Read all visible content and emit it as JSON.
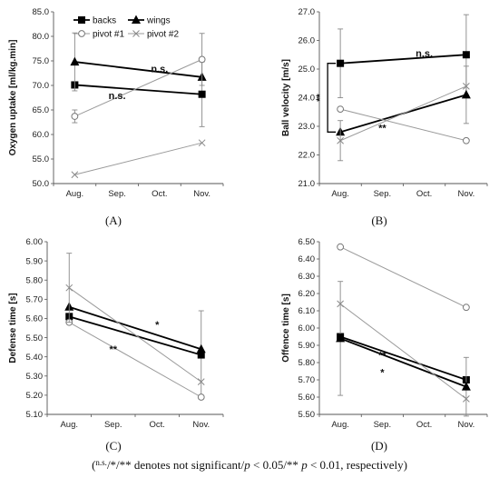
{
  "caption": {
    "sup": "n.s.",
    "rest": "/*/** denotes not significant/",
    "p1": "p",
    "mid": " < 0.05/** ",
    "p2": "p",
    "end": " < 0.01, respectively)",
    "open": "("
  },
  "colors": {
    "backs": "#000000",
    "wings": "#000000",
    "pivot1": "#8c8c8c",
    "pivot2": "#8c8c8c",
    "errbar": "#8c8c8c"
  },
  "chart_data": [
    {
      "id": "A",
      "type": "line",
      "letter": "(A)",
      "categories": [
        "Aug.",
        "Sep.",
        "Oct.",
        "Nov."
      ],
      "ylabel": "Oxygen uptake [ml/kg.min]",
      "ylim": [
        50,
        85
      ],
      "yticks": [
        "50.0",
        "55.0",
        "60.0",
        "65.0",
        "70.0",
        "75.0",
        "80.0",
        "85.0"
      ],
      "legend": [
        {
          "key": "backs",
          "label": "backs",
          "marker": "square"
        },
        {
          "key": "wings",
          "label": "wings",
          "marker": "triangle"
        },
        {
          "key": "pivot1",
          "label": "pivot #1",
          "marker": "circle"
        },
        {
          "key": "pivot2",
          "label": "pivot #2",
          "marker": "x"
        }
      ],
      "series": [
        {
          "key": "backs",
          "name": "backs",
          "marker": "square",
          "values": {
            "Aug.": 70.1,
            "Nov.": 68.2
          },
          "err": {
            "Aug.": null,
            "Nov.": 6.6
          }
        },
        {
          "key": "wings",
          "name": "wings",
          "marker": "triangle",
          "values": {
            "Aug.": 74.8,
            "Nov.": 71.7
          },
          "err": {
            "Aug.": 5.9,
            "Nov.": null
          }
        },
        {
          "key": "pivot1",
          "name": "pivot #1",
          "marker": "circle",
          "values": {
            "Aug.": 63.7,
            "Nov.": 75.3
          },
          "err": {
            "Aug.": 1.3,
            "Nov.": 5.3
          }
        },
        {
          "key": "pivot2",
          "name": "pivot #2",
          "marker": "x",
          "values": {
            "Aug.": 51.8,
            "Nov.": 58.3
          },
          "err": {
            "Aug.": null,
            "Nov.": null
          }
        }
      ],
      "annotations": [
        {
          "text": "n.s.",
          "at": [
            "Oct.",
            73.4
          ]
        },
        {
          "text": "n.s.",
          "at": [
            "Sep.",
            68.0
          ]
        }
      ]
    },
    {
      "id": "B",
      "type": "line",
      "letter": "(B)",
      "categories": [
        "Aug.",
        "Sep.",
        "Oct.",
        "Nov."
      ],
      "ylabel": "Ball velocity [m/s]",
      "ylim": [
        21,
        27
      ],
      "yticks": [
        "21.0",
        "22.0",
        "23.0",
        "24.0",
        "25.0",
        "26.0",
        "27.0"
      ],
      "series": [
        {
          "key": "backs",
          "name": "backs",
          "marker": "square",
          "values": {
            "Aug.": 25.2,
            "Nov.": 25.5
          },
          "err": {
            "Aug.": 1.2,
            "Nov.": 1.4
          }
        },
        {
          "key": "wings",
          "name": "wings",
          "marker": "triangle",
          "values": {
            "Aug.": 22.8,
            "Nov.": 24.1
          },
          "err": {
            "Aug.": null,
            "Nov.": 1.0
          }
        },
        {
          "key": "pivot1",
          "name": "pivot #1",
          "marker": "circle",
          "values": {
            "Aug.": 23.6,
            "Nov.": 22.5
          },
          "err": {
            "Aug.": null,
            "Nov.": null
          }
        },
        {
          "key": "pivot2",
          "name": "pivot #2",
          "marker": "x",
          "values": {
            "Aug.": 22.5,
            "Nov.": 24.4
          },
          "err": {
            "Aug.": 0.7,
            "Nov.": null
          }
        }
      ],
      "annotations": [
        {
          "text": "n.s.",
          "at": [
            "Oct.",
            25.55
          ]
        },
        {
          "text": "**",
          "at": [
            "Sep.",
            22.95
          ]
        },
        {
          "text": "**",
          "at": [
            "Aug.",
            24.0
          ],
          "rotate": true
        }
      ],
      "bracket": {
        "from": 25.2,
        "to": 22.8
      }
    },
    {
      "id": "C",
      "type": "line",
      "letter": "(C)",
      "categories": [
        "Aug.",
        "Sep.",
        "Oct.",
        "Nov."
      ],
      "ylabel": "Defense time [s]",
      "ylim": [
        5.1,
        6.0
      ],
      "yticks": [
        "5.10",
        "5.20",
        "5.30",
        "5.40",
        "5.50",
        "5.60",
        "5.70",
        "5.80",
        "5.90",
        "6.00"
      ],
      "series": [
        {
          "key": "backs",
          "name": "backs",
          "marker": "square",
          "values": {
            "Aug.": 5.61,
            "Nov.": 5.41
          },
          "err": {
            "Aug.": null,
            "Nov.": 0.23
          }
        },
        {
          "key": "wings",
          "name": "wings",
          "marker": "triangle",
          "values": {
            "Aug.": 5.66,
            "Nov.": 5.44
          },
          "err": {
            "Aug.": null,
            "Nov.": null
          }
        },
        {
          "key": "pivot1",
          "name": "pivot #1",
          "marker": "circle",
          "values": {
            "Aug.": 5.58,
            "Nov.": 5.19
          },
          "err": {
            "Aug.": null,
            "Nov.": null
          }
        },
        {
          "key": "pivot2",
          "name": "pivot #2",
          "marker": "x",
          "values": {
            "Aug.": 5.76,
            "Nov.": 5.27
          },
          "err": {
            "Aug.": 0.18,
            "Nov.": null
          }
        }
      ],
      "annotations": [
        {
          "text": "*",
          "at": [
            "Oct.",
            5.57
          ]
        },
        {
          "text": "**",
          "at": [
            "Sep.",
            5.44
          ]
        }
      ]
    },
    {
      "id": "D",
      "type": "line",
      "letter": "(D)",
      "categories": [
        "Aug.",
        "Sep.",
        "Oct.",
        "Nov."
      ],
      "ylabel": "Offence time [s]",
      "ylim": [
        5.5,
        6.5
      ],
      "yticks": [
        "5.50",
        "5.60",
        "5.70",
        "5.80",
        "5.90",
        "6.00",
        "6.10",
        "6.20",
        "6.30",
        "6.40",
        "6.50"
      ],
      "series": [
        {
          "key": "backs",
          "name": "backs",
          "marker": "square",
          "values": {
            "Aug.": 5.95,
            "Nov.": 5.7
          },
          "err": {
            "Aug.": null,
            "Nov.": null
          }
        },
        {
          "key": "wings",
          "name": "wings",
          "marker": "triangle",
          "values": {
            "Aug.": 5.94,
            "Nov.": 5.66
          },
          "err": {
            "Aug.": 0.33,
            "Nov.": 0.17
          }
        },
        {
          "key": "pivot1",
          "name": "pivot #1",
          "marker": "circle",
          "values": {
            "Aug.": 6.47,
            "Nov.": 6.12
          },
          "err": {
            "Aug.": null,
            "Nov.": null
          }
        },
        {
          "key": "pivot2",
          "name": "pivot #2",
          "marker": "x",
          "values": {
            "Aug.": 6.14,
            "Nov.": 5.59
          },
          "err": {
            "Aug.": null,
            "Nov.": null
          }
        }
      ],
      "annotations": [
        {
          "text": "**",
          "at": [
            "Sep.",
            5.845
          ]
        },
        {
          "text": "*",
          "at": [
            "Sep.",
            5.745
          ]
        }
      ]
    }
  ]
}
